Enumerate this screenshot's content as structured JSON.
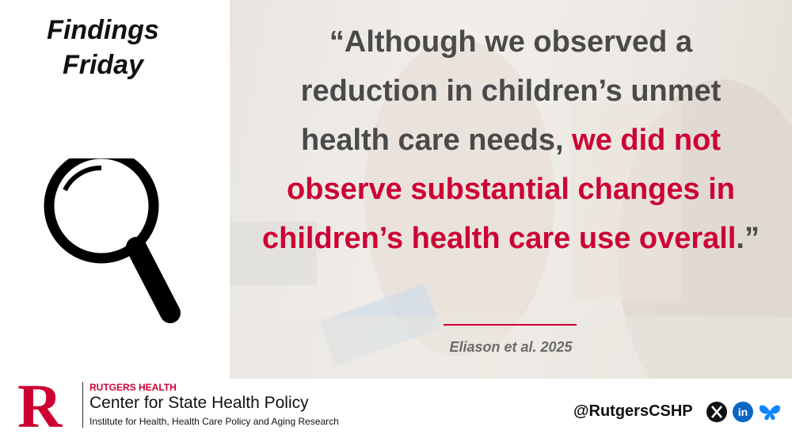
{
  "header": {
    "title": "Findings Friday"
  },
  "quote": {
    "segments": [
      {
        "text": "“Although we observed a reduction in children’s unmet health care needs, ",
        "color": "#4a4a4a"
      },
      {
        "text": "we did not observe substantial changes in children’s health care use overall",
        "color": "#cc0033"
      },
      {
        "text": ".”",
        "color": "#4a4a4a"
      }
    ],
    "citation": "Eliason et al. 2025"
  },
  "footer": {
    "org_top": "RUTGERS HEALTH",
    "org_name": "Center for State Health Policy",
    "org_sub": "Institute for Health, Health Care Policy and Aging Research",
    "handle": "@RutgersCSHP",
    "logo_letter": "R"
  }
}
